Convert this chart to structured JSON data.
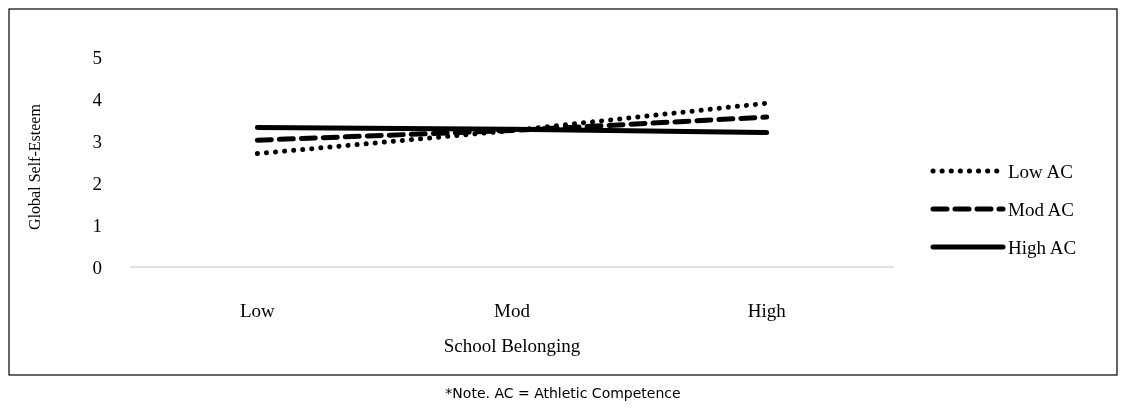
{
  "chart_data": {
    "type": "line",
    "xlabel": "School Belonging",
    "ylabel": "Global Self-Esteem",
    "categories": [
      "Low",
      "Mod",
      "High"
    ],
    "ylim": [
      0,
      5
    ],
    "yticks": [
      0,
      1,
      2,
      3,
      4,
      5
    ],
    "grid": false,
    "legend": "right",
    "annotations": [
      "*Note. AC = Athletic Competence"
    ],
    "series": [
      {
        "name": "Low AC",
        "color": "#000000",
        "line_style": "dotted",
        "values": [
          2.7,
          3.25,
          3.9
        ]
      },
      {
        "name": "Mod AC",
        "color": "#000000",
        "line_style": "dashed",
        "values": [
          3.02,
          3.25,
          3.57
        ]
      },
      {
        "name": "High AC",
        "color": "#000000",
        "line_style": "solid",
        "values": [
          3.32,
          3.28,
          3.2
        ]
      }
    ]
  }
}
